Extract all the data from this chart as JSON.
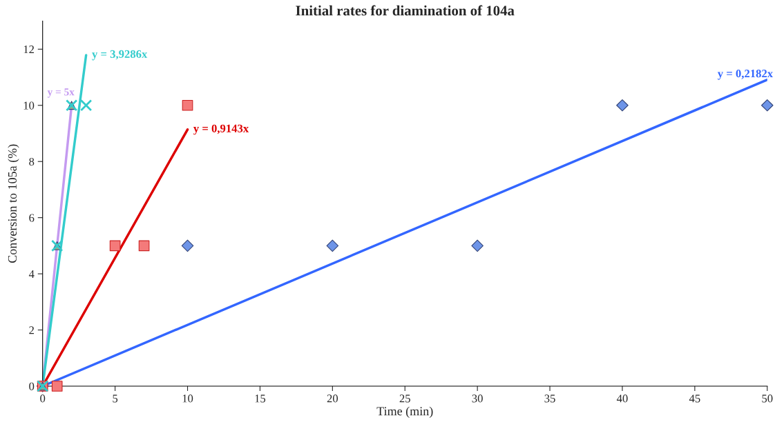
{
  "chart_data": {
    "type": "scatter",
    "title": "Initial rates for diamination of 104a",
    "xlabel": "Time (min)",
    "ylabel": "Conversion to 105a (%)",
    "xlim": [
      0,
      50
    ],
    "xticks": [
      0,
      5,
      10,
      15,
      20,
      25,
      30,
      35,
      40,
      45,
      50
    ],
    "ylim": [
      0,
      13
    ],
    "yticks": [
      0,
      2,
      4,
      6,
      8,
      10,
      12
    ],
    "grid": false,
    "legend": false,
    "series": [
      {
        "marker": "diamond",
        "color": "#6d94e8",
        "x": [
          0,
          10,
          20,
          30,
          40,
          50
        ],
        "values": [
          0,
          5,
          5,
          5,
          10,
          10
        ]
      },
      {
        "marker": "square",
        "color": "#f47a7a",
        "x": [
          0,
          1,
          5,
          7,
          10
        ],
        "values": [
          0,
          0,
          5,
          5,
          10
        ]
      },
      {
        "marker": "triangle",
        "color": "#9aaa8a",
        "x": [
          0,
          1,
          2
        ],
        "values": [
          0,
          5,
          10
        ]
      },
      {
        "marker": "cross",
        "color": "#33cccc",
        "x": [
          0,
          1,
          2,
          3
        ],
        "values": [
          0,
          5,
          10,
          10
        ]
      },
      {
        "type": "line",
        "name": "y = 0,2182x",
        "color": "#3366ff",
        "x": [
          0,
          50
        ],
        "values": [
          0,
          10.91
        ]
      },
      {
        "type": "line",
        "name": "y = 0,9143x",
        "color": "#dd0000",
        "x": [
          0,
          10
        ],
        "values": [
          0,
          9.14
        ]
      },
      {
        "type": "line",
        "name": "y = 5x",
        "color": "#c49af0",
        "x": [
          0,
          2
        ],
        "values": [
          0,
          10
        ]
      },
      {
        "type": "line",
        "name": "y = 3,9286x",
        "color": "#33cccc",
        "x": [
          0,
          3
        ],
        "values": [
          0,
          11.79
        ]
      }
    ]
  }
}
